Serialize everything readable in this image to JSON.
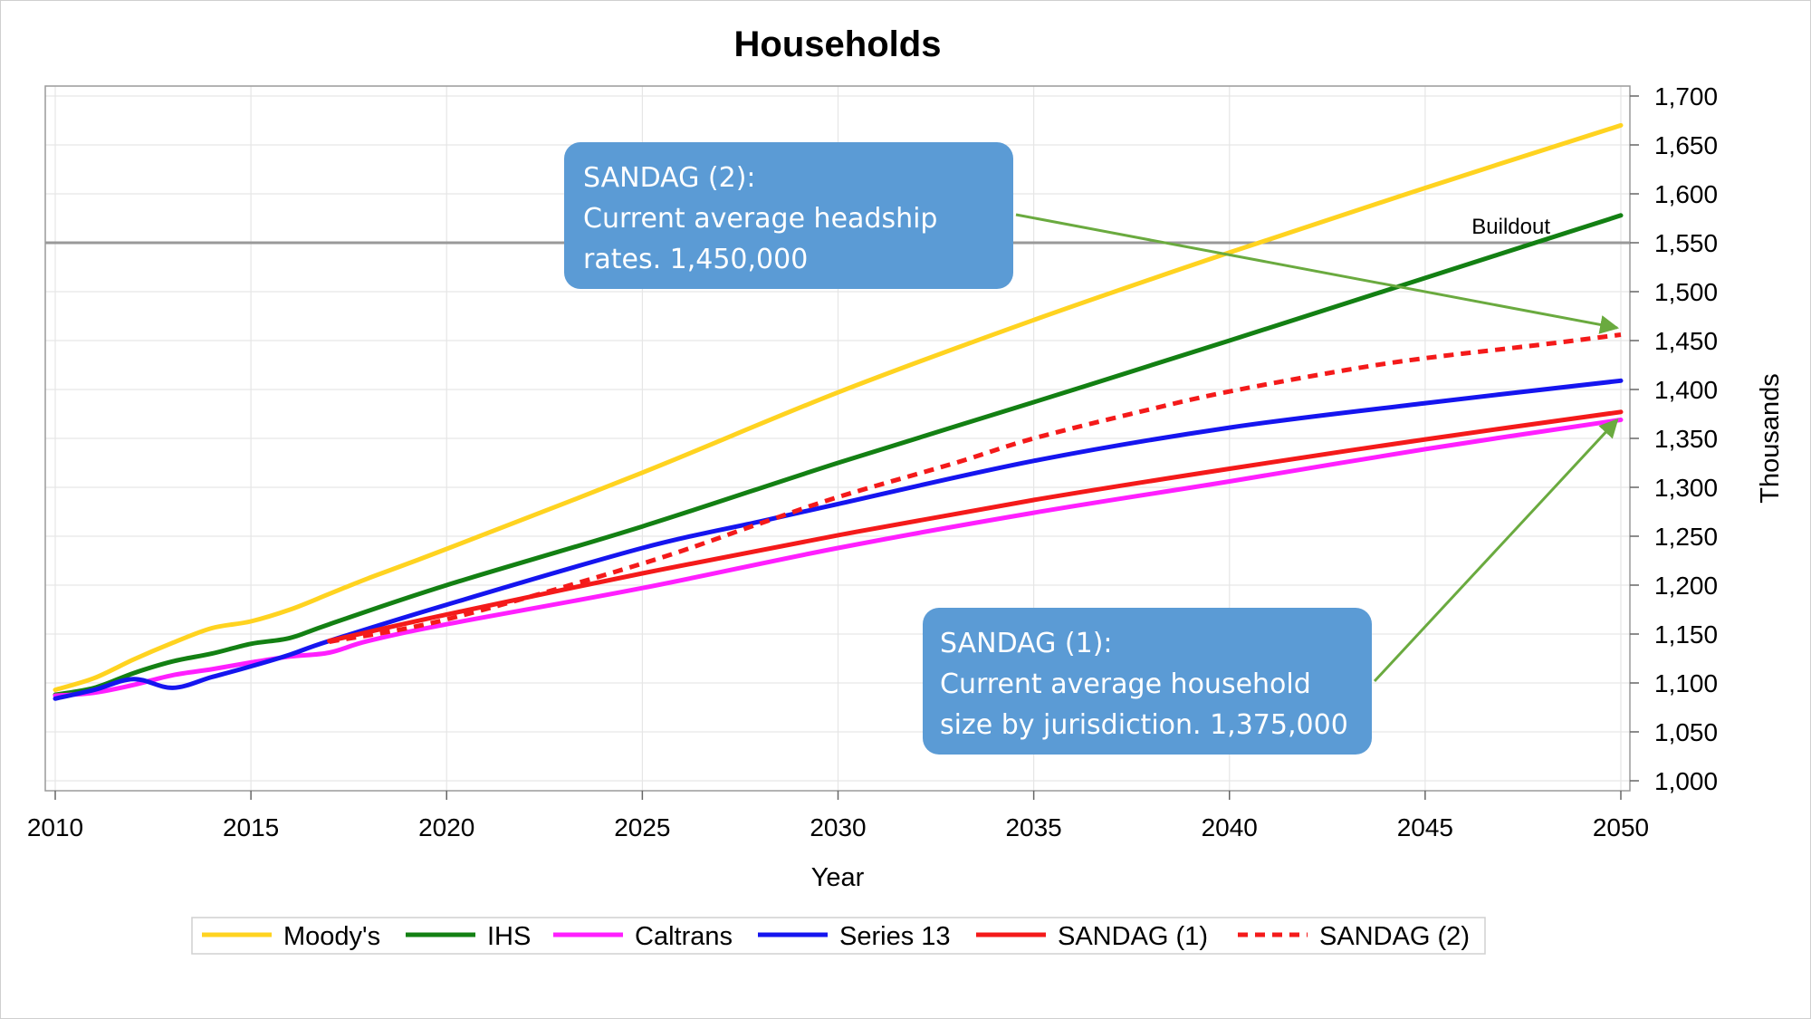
{
  "chart_data": {
    "type": "line",
    "title": "Households",
    "xlabel": "Year",
    "ylabel": "Thousands",
    "xlim": [
      2010,
      2050
    ],
    "ylim": [
      1000,
      1700
    ],
    "x_ticks": [
      2010,
      2015,
      2020,
      2025,
      2030,
      2035,
      2040,
      2045,
      2050
    ],
    "y_ticks": [
      1000,
      1050,
      1100,
      1150,
      1200,
      1250,
      1300,
      1350,
      1400,
      1450,
      1500,
      1550,
      1600,
      1650,
      1700
    ],
    "x_tick_labels": [
      "2010",
      "2015",
      "2020",
      "2025",
      "2030",
      "2035",
      "2040",
      "2045",
      "2050"
    ],
    "y_tick_labels": [
      "1,000",
      "1,050",
      "1,100",
      "1,150",
      "1,200",
      "1,250",
      "1,300",
      "1,350",
      "1,400",
      "1,450",
      "1,500",
      "1,550",
      "1,600",
      "1,650",
      "1,700"
    ],
    "y_axis_side": "right",
    "grid": true,
    "legend_position": "bottom",
    "reference_line": {
      "label": "Buildout",
      "value": 1550,
      "color": "#999999"
    },
    "series": [
      {
        "name": "Moody's",
        "color": "#ffd320",
        "dash": "solid",
        "points": [
          [
            2010,
            1093
          ],
          [
            2011,
            1105
          ],
          [
            2012,
            1124
          ],
          [
            2013,
            1141
          ],
          [
            2014,
            1156
          ],
          [
            2015,
            1163
          ],
          [
            2016,
            1175
          ],
          [
            2017,
            1191
          ],
          [
            2018,
            1207
          ],
          [
            2020,
            1237
          ],
          [
            2025,
            1315
          ],
          [
            2030,
            1397
          ],
          [
            2035,
            1471
          ],
          [
            2040,
            1540
          ],
          [
            2045,
            1606
          ],
          [
            2050,
            1670
          ]
        ]
      },
      {
        "name": "IHS",
        "color": "#138013",
        "dash": "solid",
        "points": [
          [
            2010,
            1088
          ],
          [
            2011,
            1095
          ],
          [
            2012,
            1110
          ],
          [
            2013,
            1122
          ],
          [
            2014,
            1130
          ],
          [
            2015,
            1140
          ],
          [
            2016,
            1146
          ],
          [
            2017,
            1160
          ],
          [
            2020,
            1200
          ],
          [
            2025,
            1260
          ],
          [
            2030,
            1325
          ],
          [
            2035,
            1387
          ],
          [
            2040,
            1450
          ],
          [
            2045,
            1514
          ],
          [
            2050,
            1578
          ]
        ]
      },
      {
        "name": "Caltrans",
        "color": "#ff1fff",
        "dash": "solid",
        "points": [
          [
            2010,
            1087
          ],
          [
            2011,
            1090
          ],
          [
            2012,
            1098
          ],
          [
            2013,
            1108
          ],
          [
            2014,
            1114
          ],
          [
            2015,
            1121
          ],
          [
            2016,
            1127
          ],
          [
            2017,
            1131
          ],
          [
            2018,
            1143
          ],
          [
            2020,
            1160
          ],
          [
            2025,
            1197
          ],
          [
            2030,
            1238
          ],
          [
            2035,
            1274
          ],
          [
            2040,
            1306
          ],
          [
            2045,
            1339
          ],
          [
            2050,
            1369
          ]
        ]
      },
      {
        "name": "Series 13",
        "color": "#1515ef",
        "dash": "solid",
        "points": [
          [
            2010,
            1084
          ],
          [
            2011,
            1093
          ],
          [
            2012,
            1104
          ],
          [
            2013,
            1095
          ],
          [
            2014,
            1106
          ],
          [
            2015,
            1117
          ],
          [
            2016,
            1129
          ],
          [
            2017,
            1143
          ],
          [
            2020,
            1180
          ],
          [
            2025,
            1238
          ],
          [
            2028,
            1265
          ],
          [
            2030,
            1283
          ],
          [
            2035,
            1327
          ],
          [
            2040,
            1361
          ],
          [
            2045,
            1386
          ],
          [
            2050,
            1409
          ]
        ]
      },
      {
        "name": "SANDAG (1)",
        "color": "#f41a1a",
        "dash": "solid",
        "points": [
          [
            2017,
            1143
          ],
          [
            2020,
            1170
          ],
          [
            2025,
            1212
          ],
          [
            2030,
            1251
          ],
          [
            2035,
            1287
          ],
          [
            2040,
            1319
          ],
          [
            2045,
            1349
          ],
          [
            2050,
            1377
          ]
        ]
      },
      {
        "name": "SANDAG (2)",
        "color": "#f41a1a",
        "dash": "dashed",
        "points": [
          [
            2017,
            1142
          ],
          [
            2020,
            1165
          ],
          [
            2025,
            1222
          ],
          [
            2028,
            1263
          ],
          [
            2030,
            1290
          ],
          [
            2033,
            1325
          ],
          [
            2035,
            1350
          ],
          [
            2038,
            1380
          ],
          [
            2040,
            1398
          ],
          [
            2043,
            1420
          ],
          [
            2045,
            1432
          ],
          [
            2048,
            1446
          ],
          [
            2050,
            1456
          ]
        ]
      }
    ],
    "annotations": [
      {
        "lines": [
          "SANDAG (2):",
          "Current average headship",
          "rates. 1,450,000"
        ],
        "arrow_to": [
          2050,
          1463
        ]
      },
      {
        "lines": [
          "SANDAG (1):",
          "Current average household",
          "size by jurisdiction. 1,375,000"
        ],
        "arrow_to": [
          2050,
          1369
        ]
      }
    ],
    "annotation_box_color": "#5b9bd5",
    "annotation_arrow_color": "#6aaa3f"
  }
}
